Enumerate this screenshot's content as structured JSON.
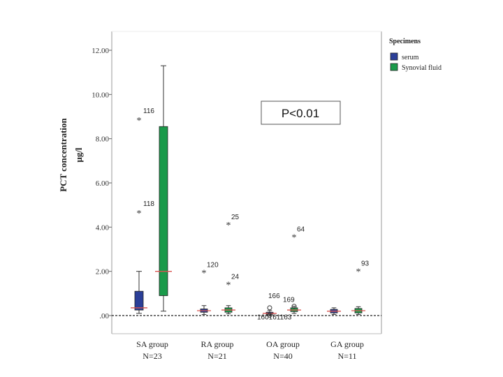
{
  "chart_data": {
    "type": "box",
    "ylabel_line1": "PCT concentration",
    "ylabel_line2": "μg/l",
    "ylim": [
      0,
      12
    ],
    "yticks": [
      "12.00",
      "10.00",
      "8.00",
      "6.00",
      "4.00",
      "2.00",
      ".00"
    ],
    "ytick_values": [
      12,
      10,
      8,
      6,
      4,
      2,
      0
    ],
    "annotation": "P<0.01",
    "legend": {
      "title": "Specimens",
      "entries": [
        {
          "label": "serum",
          "color": "#2b3f98"
        },
        {
          "label": "Synovial fluid",
          "color": "#1a9a4a"
        }
      ]
    },
    "categories": [
      {
        "name": "SA group",
        "n": "N=23"
      },
      {
        "name": "RA group",
        "n": "N=21"
      },
      {
        "name": "OA group",
        "n": "N=40"
      },
      {
        "name": "GA group",
        "n": "N=11"
      }
    ],
    "series": [
      {
        "name": "serum",
        "color": "#2b3f98",
        "boxes": [
          {
            "group": "SA group",
            "min": 0.1,
            "q1": 0.25,
            "median": 0.35,
            "q3": 1.1,
            "max": 2.0
          },
          {
            "group": "RA group",
            "min": 0.05,
            "q1": 0.15,
            "median": 0.22,
            "q3": 0.3,
            "max": 0.45
          },
          {
            "group": "OA group",
            "min": 0.02,
            "q1": 0.06,
            "median": 0.1,
            "q3": 0.15,
            "max": 0.22
          },
          {
            "group": "GA group",
            "min": 0.05,
            "q1": 0.12,
            "median": 0.2,
            "q3": 0.28,
            "max": 0.35
          }
        ]
      },
      {
        "name": "Synovial fluid",
        "color": "#1a9a4a",
        "boxes": [
          {
            "group": "SA group",
            "min": 0.2,
            "q1": 0.9,
            "median": 2.0,
            "q3": 8.55,
            "max": 11.3
          },
          {
            "group": "RA group",
            "min": 0.08,
            "q1": 0.15,
            "median": 0.25,
            "q3": 0.35,
            "max": 0.45
          },
          {
            "group": "OA group",
            "min": 0.1,
            "q1": 0.18,
            "median": 0.25,
            "q3": 0.35,
            "max": 0.42
          },
          {
            "group": "GA group",
            "min": 0.05,
            "q1": 0.12,
            "median": 0.22,
            "q3": 0.32,
            "max": 0.4
          }
        ]
      }
    ],
    "outliers": [
      {
        "group": "SA group",
        "series": "serum",
        "value": 8.85,
        "label": "116",
        "marker": "*"
      },
      {
        "group": "SA group",
        "series": "serum",
        "value": 4.65,
        "label": "118",
        "marker": "*"
      },
      {
        "group": "RA group",
        "series": "serum",
        "value": 1.95,
        "label": "120",
        "marker": "*"
      },
      {
        "group": "RA group",
        "series": "Synovial fluid",
        "value": 4.1,
        "label": "25",
        "marker": "*"
      },
      {
        "group": "RA group",
        "series": "Synovial fluid",
        "value": 1.4,
        "label": "24",
        "marker": "*"
      },
      {
        "group": "OA group",
        "series": "serum",
        "value": 0.35,
        "label": "166",
        "marker": "o"
      },
      {
        "group": "OA group",
        "series": "serum",
        "value": 0.02,
        "label": "160161163",
        "marker": "o"
      },
      {
        "group": "OA group",
        "series": "Synovial fluid",
        "value": 3.55,
        "label": "64",
        "marker": "*"
      },
      {
        "group": "OA group",
        "series": "Synovial fluid",
        "value": 0.42,
        "label": "169",
        "marker": "o"
      },
      {
        "group": "GA group",
        "series": "Synovial fluid",
        "value": 2.0,
        "label": "93",
        "marker": "*"
      }
    ]
  }
}
